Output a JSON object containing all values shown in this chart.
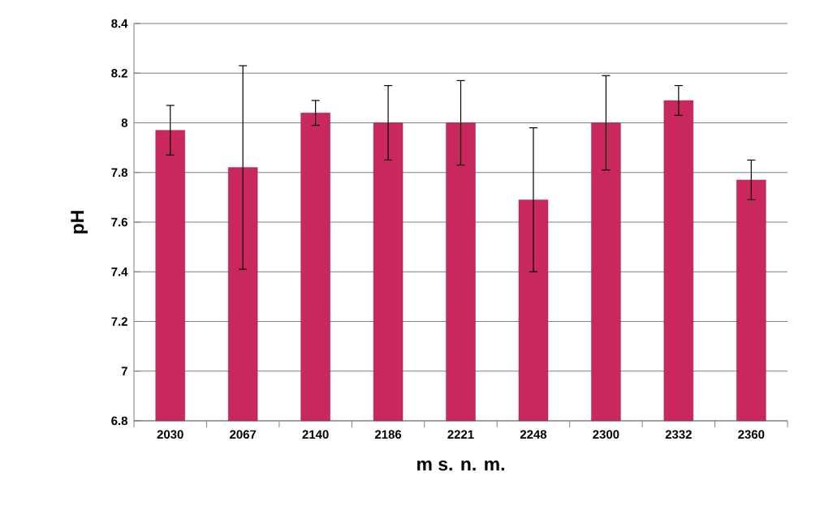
{
  "chart_data": {
    "type": "bar",
    "xlabel": "m s. n. m.",
    "ylabel": "pH",
    "categories": [
      "2030",
      "2067",
      "2140",
      "2186",
      "2221",
      "2248",
      "2300",
      "2332",
      "2360"
    ],
    "values": [
      7.97,
      7.82,
      8.04,
      8.0,
      8.0,
      7.69,
      8.0,
      8.09,
      7.77
    ],
    "errors": [
      [
        7.87,
        8.07
      ],
      [
        7.41,
        8.23
      ],
      [
        7.99,
        8.09
      ],
      [
        7.85,
        8.15
      ],
      [
        7.83,
        8.17
      ],
      [
        7.4,
        7.98
      ],
      [
        7.81,
        8.19
      ],
      [
        8.03,
        8.15
      ],
      [
        7.69,
        7.85
      ]
    ],
    "color": "#c8285f",
    "ylim": [
      6.8,
      8.4
    ],
    "yticks": [
      6.8,
      7,
      7.2,
      7.4,
      7.6,
      7.8,
      8,
      8.2,
      8.4
    ],
    "grid": "y"
  }
}
